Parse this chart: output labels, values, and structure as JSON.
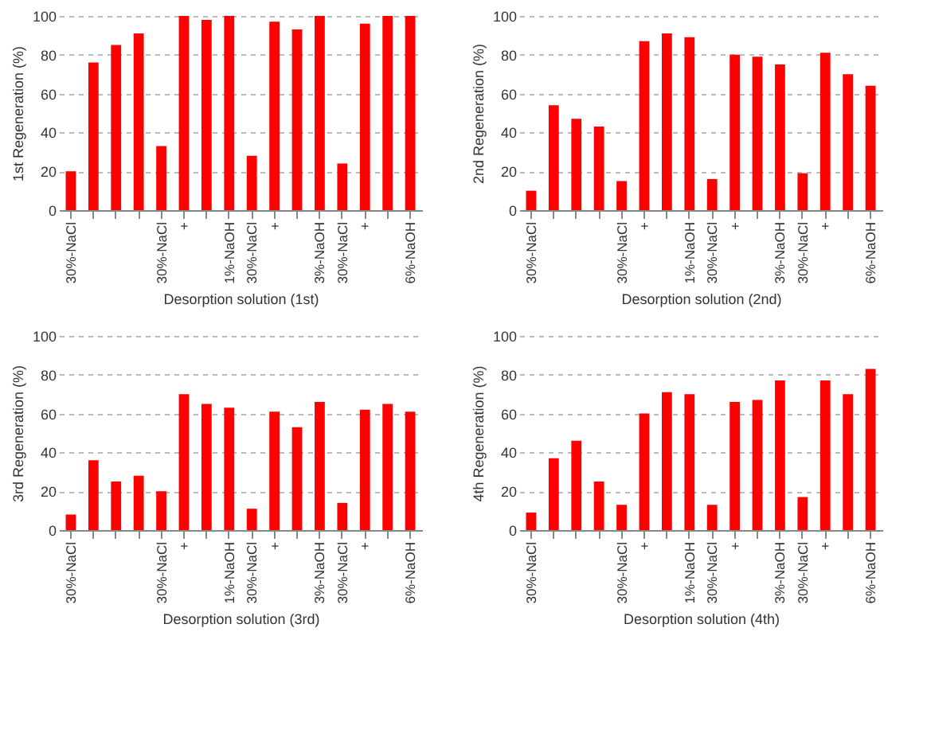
{
  "chart_data": [
    {
      "type": "bar",
      "xlabel": "Desorption solution (1st)",
      "ylabel": "1st Regeneration (%)",
      "categories": [
        "30%-NaCl",
        null,
        null,
        null,
        "30%-NaCl",
        "+",
        null,
        "1%-NaOH",
        "30%-NaCl",
        "+",
        null,
        "3%-NaOH",
        "30%-NaCl",
        "+",
        null,
        "6%-NaOH"
      ],
      "values": [
        20,
        76,
        85,
        91,
        33,
        100,
        98,
        100,
        28,
        97,
        93,
        100,
        24,
        96,
        100,
        100
      ],
      "color": "#ff0000",
      "ylim": [
        0,
        100
      ],
      "yticks": [
        0,
        20,
        40,
        60,
        80,
        100
      ],
      "grid": "y"
    },
    {
      "type": "bar",
      "xlabel": "Desorption solution (2nd)",
      "ylabel": "2nd Regeneration (%)",
      "categories": [
        "30%-NaCl",
        null,
        null,
        null,
        "30%-NaCl",
        "+",
        null,
        "1%-NaOH",
        "30%-NaCl",
        "+",
        null,
        "3%-NaOH",
        "30%-NaCl",
        "+",
        null,
        "6%-NaOH"
      ],
      "values": [
        10,
        54,
        47,
        43,
        15,
        87,
        91,
        89,
        16,
        80,
        79,
        75,
        19,
        81,
        70,
        64
      ],
      "color": "#ff0000",
      "ylim": [
        0,
        100
      ],
      "yticks": [
        0,
        20,
        40,
        60,
        80,
        100
      ],
      "grid": "y"
    },
    {
      "type": "bar",
      "xlabel": "Desorption solution (3rd)",
      "ylabel": "3rd Regeneration (%)",
      "categories": [
        "30%-NaCl",
        null,
        null,
        null,
        "30%-NaCl",
        "+",
        null,
        "1%-NaOH",
        "30%-NaCl",
        "+",
        null,
        "3%-NaOH",
        "30%-NaCl",
        "+",
        null,
        "6%-NaOH"
      ],
      "values": [
        8,
        36,
        25,
        28,
        20,
        70,
        65,
        63,
        11,
        61,
        53,
        66,
        14,
        62,
        65,
        61
      ],
      "color": "#ff0000",
      "ylim": [
        0,
        100
      ],
      "yticks": [
        0,
        20,
        40,
        60,
        80,
        100
      ],
      "grid": "y"
    },
    {
      "type": "bar",
      "xlabel": "Desorption solution (4th)",
      "ylabel": "4th Regeneration (%)",
      "categories": [
        "30%-NaCl",
        null,
        null,
        null,
        "30%-NaCl",
        "+",
        null,
        "1%-NaOH",
        "30%-NaCl",
        "+",
        null,
        "3%-NaOH",
        "30%-NaCl",
        "+",
        null,
        "6%-NaOH"
      ],
      "values": [
        9,
        37,
        46,
        25,
        13,
        60,
        71,
        70,
        13,
        66,
        67,
        77,
        17,
        77,
        70,
        83
      ],
      "color": "#ff0000",
      "ylim": [
        0,
        100
      ],
      "yticks": [
        0,
        20,
        40,
        60,
        80,
        100
      ],
      "grid": "y"
    }
  ]
}
